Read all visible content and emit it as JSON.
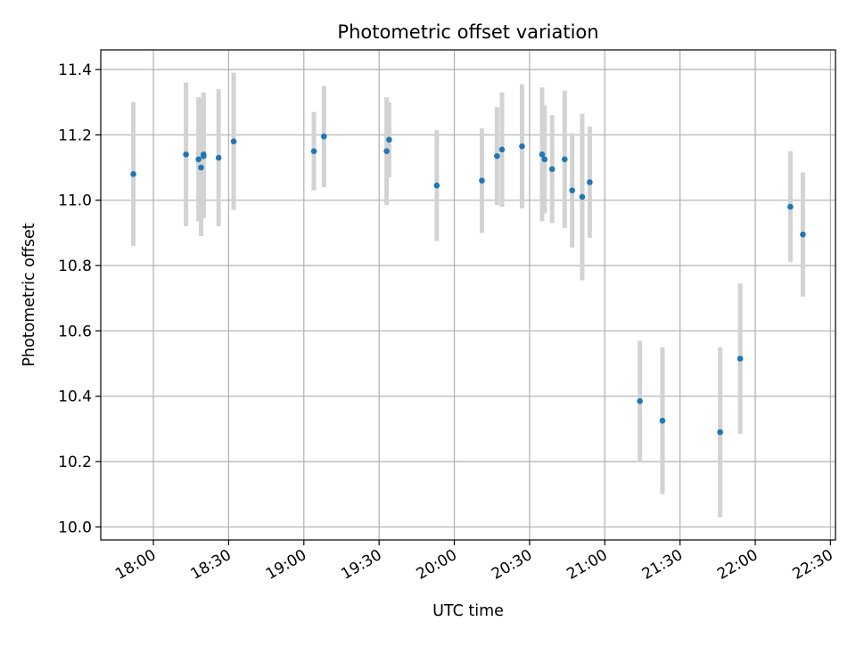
{
  "chart_data": {
    "type": "scatter",
    "title": "Photometric offset variation",
    "xlabel": "UTC time",
    "ylabel": "Photometric offset",
    "xlim": [
      "17:39",
      "22:32"
    ],
    "ylim": [
      9.96,
      11.46
    ],
    "x_ticks": [
      "18:00",
      "18:30",
      "19:00",
      "19:30",
      "20:00",
      "20:30",
      "21:00",
      "21:30",
      "22:00",
      "22:30"
    ],
    "y_ticks": [
      10.0,
      10.2,
      10.4,
      10.6,
      10.8,
      11.0,
      11.2,
      11.4
    ],
    "y_tick_labels": [
      "10.0",
      "10.2",
      "10.4",
      "10.6",
      "10.8",
      "11.0",
      "11.2",
      "11.4"
    ],
    "grid": true,
    "point_color": "#1f77b4",
    "error_bar_color": "#d3d3d3",
    "series": [
      {
        "points": [
          {
            "x": "17:52",
            "y": 11.08,
            "err": 0.22
          },
          {
            "x": "18:13",
            "y": 11.14,
            "err": 0.22
          },
          {
            "x": "18:18",
            "y": 11.125,
            "err": 0.19
          },
          {
            "x": "18:19",
            "y": 11.1,
            "err": 0.21
          },
          {
            "x": "18:20",
            "y": 11.135,
            "err": 0.19
          },
          {
            "x": "18:20",
            "y": 11.14,
            "err": 0.19
          },
          {
            "x": "18:26",
            "y": 11.13,
            "err": 0.21
          },
          {
            "x": "18:32",
            "y": 11.18,
            "err": 0.21
          },
          {
            "x": "19:04",
            "y": 11.15,
            "err": 0.12
          },
          {
            "x": "19:08",
            "y": 11.195,
            "err": 0.155
          },
          {
            "x": "19:33",
            "y": 11.15,
            "err": 0.165
          },
          {
            "x": "19:34",
            "y": 11.185,
            "err": 0.115
          },
          {
            "x": "19:53",
            "y": 11.045,
            "err": 0.17
          },
          {
            "x": "20:11",
            "y": 11.06,
            "err": 0.16
          },
          {
            "x": "20:17",
            "y": 11.135,
            "err": 0.15
          },
          {
            "x": "20:19",
            "y": 11.155,
            "err": 0.175
          },
          {
            "x": "20:27",
            "y": 11.165,
            "err": 0.19
          },
          {
            "x": "20:35",
            "y": 11.14,
            "err": 0.205
          },
          {
            "x": "20:36",
            "y": 11.125,
            "err": 0.165
          },
          {
            "x": "20:39",
            "y": 11.095,
            "err": 0.165
          },
          {
            "x": "20:44",
            "y": 11.125,
            "err": 0.21
          },
          {
            "x": "20:47",
            "y": 11.03,
            "err": 0.175
          },
          {
            "x": "20:51",
            "y": 11.01,
            "err": 0.255
          },
          {
            "x": "20:54",
            "y": 11.055,
            "err": 0.17
          },
          {
            "x": "21:14",
            "y": 10.385,
            "err": 0.185
          },
          {
            "x": "21:23",
            "y": 10.325,
            "err": 0.225
          },
          {
            "x": "21:46",
            "y": 10.29,
            "err": 0.26
          },
          {
            "x": "21:54",
            "y": 10.515,
            "err": 0.23
          },
          {
            "x": "22:14",
            "y": 10.98,
            "err": 0.17
          },
          {
            "x": "22:19",
            "y": 10.895,
            "err": 0.19
          }
        ]
      }
    ]
  }
}
